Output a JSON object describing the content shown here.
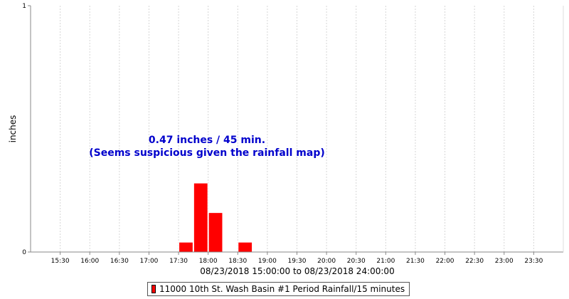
{
  "chart_data": {
    "type": "bar",
    "title": "",
    "ylabel": "inches",
    "xlabel": "08/23/2018 15:00:00 to 08/23/2018 24:00:00",
    "ylim": [
      0,
      1
    ],
    "ytick_labels": [
      "0",
      "1"
    ],
    "xlim": [
      "15:00",
      "24:00"
    ],
    "xtick_labels": [
      "15:30",
      "16:00",
      "16:30",
      "17:00",
      "17:30",
      "18:00",
      "18:30",
      "19:00",
      "19:30",
      "20:00",
      "20:30",
      "21:00",
      "21:30",
      "22:00",
      "22:30",
      "23:00",
      "23:30"
    ],
    "grid": "vertical dashed",
    "bar_interval": "15 minutes",
    "series": [
      {
        "name": "11000 10th St. Wash Basin #1 Period Rainfall/15 minutes",
        "color": "#ff0000",
        "bars": [
          {
            "start": "17:30",
            "value": 0.04
          },
          {
            "start": "17:45",
            "value": 0.28
          },
          {
            "start": "18:00",
            "value": 0.16
          },
          {
            "start": "18:30",
            "value": 0.04
          }
        ]
      }
    ],
    "annotations": [
      "0.47 inches / 45 min.",
      "(Seems suspicious given the rainfall map)"
    ],
    "legend_position": "bottom"
  }
}
